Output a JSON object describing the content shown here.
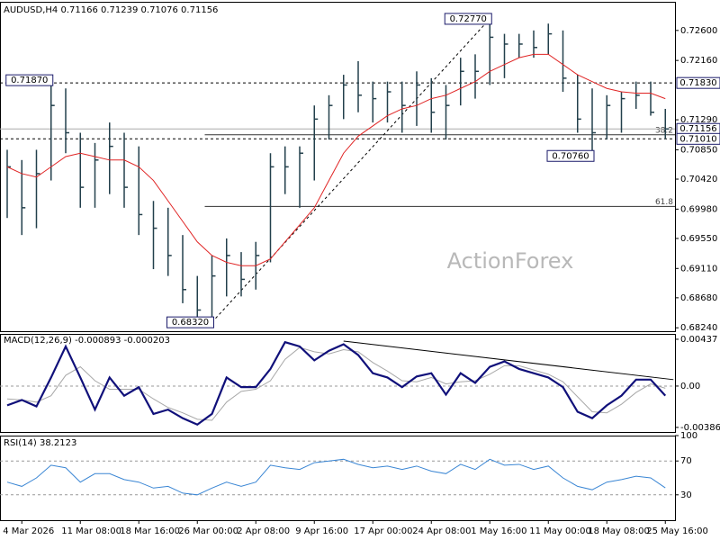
{
  "chart_data": [
    {
      "type": "ohlc",
      "title": "AUDUSD,H4  0.71166 0.71239 0.71076 0.71156",
      "categories": [
        null,
        "4 Mar 2026",
        null,
        null,
        null,
        "11 Mar 08:00",
        null,
        null,
        null,
        "18 Mar 16:00",
        null,
        null,
        null,
        "26 Mar 00:00",
        null,
        null,
        null,
        "2 Apr 08:00",
        null,
        null,
        null,
        "9 Apr 16:00",
        null,
        null,
        null,
        "17 Apr 00:00",
        null,
        null,
        null,
        "24 Apr 08:00",
        null,
        null,
        null,
        "1 May 16:00",
        null,
        null,
        null,
        "11 May 00:00",
        null,
        null,
        null,
        "18 May 08:00",
        null,
        null,
        null,
        "25 May 16:00"
      ],
      "high": [
        0.7085,
        0.707,
        0.7085,
        0.7187,
        0.7175,
        0.711,
        0.7095,
        0.7125,
        0.711,
        0.709,
        0.701,
        0.7,
        0.696,
        0.69,
        0.693,
        0.6955,
        0.6935,
        0.695,
        0.708,
        0.709,
        0.709,
        0.715,
        0.7165,
        0.7195,
        0.7215,
        0.7185,
        0.7185,
        0.7185,
        0.72,
        0.719,
        0.718,
        0.722,
        0.7225,
        0.7277,
        0.7255,
        0.7255,
        0.726,
        0.727,
        0.726,
        0.7195,
        0.7175,
        0.7165,
        0.717,
        0.7185,
        0.7185,
        0.7145
      ],
      "low": [
        0.6985,
        0.696,
        0.697,
        0.704,
        0.708,
        0.7,
        0.7,
        0.702,
        0.7,
        0.696,
        0.691,
        0.69,
        0.686,
        0.6835,
        0.6832,
        0.687,
        0.687,
        0.688,
        0.692,
        0.702,
        0.7,
        0.704,
        0.71,
        0.713,
        0.714,
        0.7125,
        0.7125,
        0.711,
        0.712,
        0.711,
        0.71,
        0.715,
        0.716,
        0.718,
        0.719,
        0.722,
        0.722,
        0.7225,
        0.717,
        0.711,
        0.7076,
        0.71,
        0.711,
        0.7145,
        0.7135,
        0.7101
      ],
      "close": [
        0.706,
        0.7,
        0.705,
        0.715,
        0.711,
        0.703,
        0.707,
        0.709,
        0.703,
        0.699,
        0.697,
        0.693,
        0.688,
        0.685,
        0.69,
        0.693,
        0.6895,
        0.693,
        0.706,
        0.706,
        0.708,
        0.713,
        0.715,
        0.718,
        0.7165,
        0.716,
        0.717,
        0.715,
        0.718,
        0.714,
        0.715,
        0.72,
        0.72,
        0.725,
        0.724,
        0.724,
        0.7235,
        0.7255,
        0.719,
        0.713,
        0.711,
        0.715,
        0.716,
        0.7165,
        0.714,
        0.71156
      ],
      "color": "#23404c",
      "ma": {
        "color": "#e02424",
        "values": [
          0.706,
          0.705,
          0.7045,
          0.706,
          0.7075,
          0.708,
          0.7075,
          0.707,
          0.707,
          0.706,
          0.704,
          0.701,
          0.698,
          0.695,
          0.693,
          0.692,
          0.6915,
          0.6915,
          0.6925,
          0.695,
          0.6975,
          0.7,
          0.704,
          0.708,
          0.7105,
          0.712,
          0.7135,
          0.7145,
          0.715,
          0.716,
          0.7165,
          0.7175,
          0.7185,
          0.72,
          0.721,
          0.722,
          0.7225,
          0.7225,
          0.721,
          0.7195,
          0.7185,
          0.7175,
          0.717,
          0.7168,
          0.7168,
          0.716
        ]
      },
      "ylim": [
        0.6819,
        0.7302
      ],
      "yticks": [
        {
          "value": 0.6824,
          "label": "0.68240"
        },
        {
          "value": 0.6868,
          "label": "0.68680"
        },
        {
          "value": 0.6911,
          "label": "0.69110"
        },
        {
          "value": 0.6955,
          "label": "0.69550"
        },
        {
          "value": 0.6998,
          "label": "0.69980"
        },
        {
          "value": 0.7042,
          "label": "0.70420"
        },
        {
          "value": 0.7085,
          "label": "0.70850"
        },
        {
          "value": 0.7129,
          "label": "0.71290"
        },
        {
          "value": 0.7216,
          "label": "0.72160"
        },
        {
          "value": 0.726,
          "label": "0.72600"
        }
      ],
      "price_labels": [
        {
          "value": 0.7183,
          "label": "0.71830"
        },
        {
          "value": 0.71156,
          "label": "0.71156"
        },
        {
          "value": 0.7101,
          "label": "0.71010"
        }
      ],
      "price_line_styles": [
        "dashed",
        "solid",
        "dashed"
      ],
      "annotations": [
        {
          "bar": 3,
          "value": 0.7187,
          "label": "0.71870"
        },
        {
          "bar": 14,
          "value": 0.6832,
          "label": "0.68320"
        },
        {
          "bar": 33,
          "value": 0.7277,
          "label": "0.72770"
        },
        {
          "bar": 40,
          "value": 0.7076,
          "label": "0.70760"
        }
      ],
      "fib_levels": [
        {
          "value": 0.7107,
          "label": "38.2"
        },
        {
          "value": 0.7002,
          "label": "61.8"
        }
      ],
      "watermark": "ActionForex"
    },
    {
      "type": "macd",
      "title": "MACD(12,26,9) -0.000893 -0.000203",
      "series": [
        {
          "color": "#10107a",
          "values": [
            -0.0018,
            -0.0013,
            -0.0019,
            0.0008,
            0.0037,
            0.0008,
            -0.0022,
            0.0008,
            -0.0009,
            -0.0001,
            -0.0026,
            -0.0022,
            -0.003,
            -0.0036,
            -0.0026,
            0.0008,
            -0.0001,
            -0.0001,
            0.0016,
            0.0041,
            0.0037,
            0.0024,
            0.0033,
            0.0039,
            0.0029,
            0.0012,
            0.0008,
            -0.0001,
            0.0009,
            0.0012,
            -0.0008,
            0.0012,
            0.0003,
            0.0018,
            0.0023,
            0.0016,
            0.0012,
            0.0008,
            -0.0001,
            -0.0024,
            -0.003,
            -0.0018,
            -0.0009,
            0.0006,
            0.0006,
            -0.000893
          ]
        },
        {
          "color": "#a8a8a8",
          "values": [
            -0.0012,
            -0.0013,
            -0.0015,
            -0.0009,
            0.001,
            0.0018,
            0.0005,
            -0.0003,
            -0.0003,
            -0.0003,
            -0.0012,
            -0.002,
            -0.0025,
            -0.0031,
            -0.0032,
            -0.0015,
            -0.0005,
            -0.0003,
            0.0005,
            0.0025,
            0.0036,
            0.0032,
            0.003,
            0.0034,
            0.0032,
            0.0022,
            0.0014,
            0.0005,
            0.0004,
            0.0008,
            0.0002,
            0.0004,
            0.0005,
            0.0011,
            0.0019,
            0.0019,
            0.0015,
            0.0011,
            0.0004,
            -0.001,
            -0.0024,
            -0.0025,
            -0.0017,
            -0.0006,
            0.0002,
            -0.000203
          ]
        }
      ],
      "trendline": [
        {
          "bar": 23,
          "value": 0.0042
        },
        {
          "bar": 45,
          "value": 0.0006
        }
      ],
      "ylim": [
        -0.00429,
        0.00487
      ],
      "yticks": [
        0.00437,
        {
          "value": 0,
          "label": "0.00"
        },
        -0.003861
      ]
    },
    {
      "type": "line",
      "title": "RSI(14) 38.2123",
      "color": "#3a86d4",
      "values": [
        45,
        40,
        50,
        65,
        62,
        45,
        55,
        55,
        48,
        45,
        38,
        40,
        32,
        30,
        38,
        45,
        40,
        45,
        65,
        62,
        60,
        68,
        70,
        72,
        66,
        62,
        64,
        60,
        64,
        58,
        55,
        66,
        60,
        72,
        65,
        66,
        60,
        64,
        50,
        40,
        36,
        45,
        48,
        52,
        50,
        38.2123
      ],
      "ylim": [
        0,
        100
      ],
      "yticks": [
        30,
        70,
        100
      ],
      "dashed_levels": [
        30,
        70
      ]
    }
  ]
}
